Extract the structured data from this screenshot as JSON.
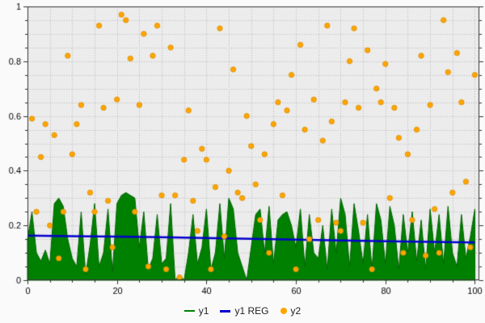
{
  "chart_data": {
    "type": "mixed",
    "title": "",
    "xlabel": "",
    "ylabel": "",
    "xlim": [
      0,
      101
    ],
    "ylim": [
      0,
      1
    ],
    "grid": true,
    "legend_position": "bottom",
    "plot_bg": "#ececec",
    "grid_color": "#b8b8b8",
    "axis_color": "#333333",
    "tick_label_color": "#000000",
    "x_ticks": [
      0,
      20,
      40,
      60,
      80,
      100
    ],
    "x_tick_labels": [
      "0",
      "20",
      "40",
      "60",
      "80",
      "100"
    ],
    "y_ticks": [
      0,
      0.2,
      0.4,
      0.6,
      0.8,
      1
    ],
    "y_tick_labels": [
      "0",
      "0.2",
      "0.4",
      "0.6",
      "0.8",
      "1"
    ],
    "series": [
      {
        "name": "y1",
        "type": "area",
        "color": "#008000",
        "edge_color": "#006400",
        "x": [
          0,
          1,
          2,
          3,
          4,
          5,
          6,
          7,
          8,
          9,
          10,
          11,
          12,
          13,
          14,
          15,
          16,
          17,
          18,
          19,
          20,
          21,
          22,
          23,
          24,
          25,
          26,
          27,
          28,
          29,
          30,
          31,
          32,
          33,
          34,
          35,
          36,
          37,
          38,
          39,
          40,
          41,
          42,
          43,
          44,
          45,
          46,
          47,
          48,
          49,
          50,
          51,
          52,
          53,
          54,
          55,
          56,
          57,
          58,
          59,
          60,
          61,
          62,
          63,
          64,
          65,
          66,
          67,
          68,
          69,
          70,
          71,
          72,
          73,
          74,
          75,
          76,
          77,
          78,
          79,
          80,
          81,
          82,
          83,
          84,
          85,
          86,
          87,
          88,
          89,
          90,
          91,
          92,
          93,
          94,
          95,
          96,
          97,
          98,
          99,
          100
        ],
        "values": [
          0.15,
          0.25,
          0.1,
          0.07,
          0.11,
          0.06,
          0.28,
          0.3,
          0.27,
          0.15,
          0.08,
          0.05,
          0.25,
          0.02,
          0.13,
          0.28,
          0.05,
          0.1,
          0.26,
          0.03,
          0.28,
          0.31,
          0.32,
          0.31,
          0.3,
          0.12,
          0.25,
          0.04,
          0.08,
          0.24,
          0.06,
          0.08,
          0.28,
          0.0,
          0.02,
          0.0,
          0.1,
          0.24,
          0.06,
          0.12,
          0.26,
          0.04,
          0.1,
          0.28,
          0.08,
          0.3,
          0.26,
          0.1,
          0.05,
          0.0,
          0.12,
          0.24,
          0.26,
          0.1,
          0.27,
          0.06,
          0.22,
          0.24,
          0.25,
          0.2,
          0.12,
          0.26,
          0.05,
          0.24,
          0.1,
          0.08,
          0.2,
          0.04,
          0.26,
          0.1,
          0.3,
          0.24,
          0.05,
          0.28,
          0.18,
          0.06,
          0.24,
          0.04,
          0.28,
          0.22,
          0.06,
          0.27,
          0.2,
          0.04,
          0.24,
          0.1,
          0.25,
          0.07,
          0.22,
          0.04,
          0.26,
          0.1,
          0.24,
          0.06,
          0.27,
          0.1,
          0.05,
          0.24,
          0.08,
          0.16,
          0.26
        ]
      },
      {
        "name": "y1 REG",
        "type": "line",
        "color": "#0000cc",
        "x": [
          0,
          10,
          20,
          30,
          40,
          50,
          60,
          70,
          80,
          90,
          100
        ],
        "values": [
          0.163,
          0.161,
          0.159,
          0.157,
          0.154,
          0.151,
          0.148,
          0.145,
          0.142,
          0.14,
          0.138
        ]
      },
      {
        "name": "y2",
        "type": "scatter",
        "color": "#ffa500",
        "edge_color": "#d98c00",
        "points": [
          [
            1,
            0.59
          ],
          [
            2,
            0.25
          ],
          [
            3,
            0.45
          ],
          [
            4,
            0.57
          ],
          [
            5,
            0.2
          ],
          [
            6,
            0.53
          ],
          [
            7,
            0.08
          ],
          [
            8,
            0.25
          ],
          [
            9,
            0.82
          ],
          [
            10,
            0.46
          ],
          [
            11,
            0.57
          ],
          [
            12,
            0.64
          ],
          [
            13,
            0.04
          ],
          [
            14,
            0.32
          ],
          [
            15,
            0.25
          ],
          [
            16,
            0.93
          ],
          [
            17,
            0.63
          ],
          [
            18,
            0.29
          ],
          [
            19,
            0.12
          ],
          [
            20,
            0.66
          ],
          [
            21,
            0.97
          ],
          [
            22,
            0.95
          ],
          [
            23,
            0.81
          ],
          [
            24,
            0.25
          ],
          [
            25,
            0.64
          ],
          [
            26,
            0.9
          ],
          [
            27,
            0.05
          ],
          [
            28,
            0.82
          ],
          [
            29,
            0.93
          ],
          [
            30,
            0.31
          ],
          [
            31,
            0.04
          ],
          [
            32,
            0.85
          ],
          [
            33,
            0.31
          ],
          [
            34,
            0.01
          ],
          [
            35,
            0.44
          ],
          [
            36,
            0.62
          ],
          [
            37,
            0.29
          ],
          [
            38,
            0.18
          ],
          [
            39,
            0.48
          ],
          [
            40,
            0.44
          ],
          [
            41,
            0.04
          ],
          [
            42,
            0.34
          ],
          [
            43,
            0.92
          ],
          [
            44,
            0.16
          ],
          [
            45,
            0.4
          ],
          [
            46,
            0.77
          ],
          [
            47,
            0.32
          ],
          [
            48,
            0.3
          ],
          [
            49,
            0.6
          ],
          [
            50,
            0.49
          ],
          [
            51,
            0.35
          ],
          [
            52,
            0.22
          ],
          [
            53,
            0.46
          ],
          [
            54,
            0.1
          ],
          [
            55,
            0.57
          ],
          [
            56,
            0.65
          ],
          [
            57,
            0.31
          ],
          [
            58,
            0.62
          ],
          [
            59,
            0.75
          ],
          [
            60,
            0.04
          ],
          [
            61,
            0.86
          ],
          [
            62,
            0.55
          ],
          [
            63,
            0.15
          ],
          [
            64,
            0.66
          ],
          [
            65,
            0.22
          ],
          [
            66,
            0.51
          ],
          [
            67,
            0.93
          ],
          [
            68,
            0.58
          ],
          [
            69,
            0.21
          ],
          [
            70,
            0.18
          ],
          [
            71,
            0.65
          ],
          [
            72,
            0.8
          ],
          [
            73,
            0.92
          ],
          [
            74,
            0.63
          ],
          [
            75,
            0.21
          ],
          [
            76,
            0.84
          ],
          [
            77,
            0.04
          ],
          [
            78,
            0.7
          ],
          [
            79,
            0.65
          ],
          [
            80,
            0.79
          ],
          [
            81,
            0.3
          ],
          [
            82,
            0.63
          ],
          [
            83,
            0.52
          ],
          [
            84,
            0.1
          ],
          [
            85,
            0.46
          ],
          [
            86,
            0.22
          ],
          [
            87,
            0.55
          ],
          [
            88,
            0.82
          ],
          [
            89,
            0.09
          ],
          [
            90,
            0.64
          ],
          [
            91,
            0.26
          ],
          [
            92,
            0.1
          ],
          [
            93,
            0.95
          ],
          [
            94,
            0.76
          ],
          [
            95,
            0.32
          ],
          [
            96,
            0.83
          ],
          [
            97,
            0.65
          ],
          [
            98,
            0.36
          ],
          [
            99,
            0.12
          ],
          [
            100,
            0.75
          ]
        ]
      }
    ]
  }
}
